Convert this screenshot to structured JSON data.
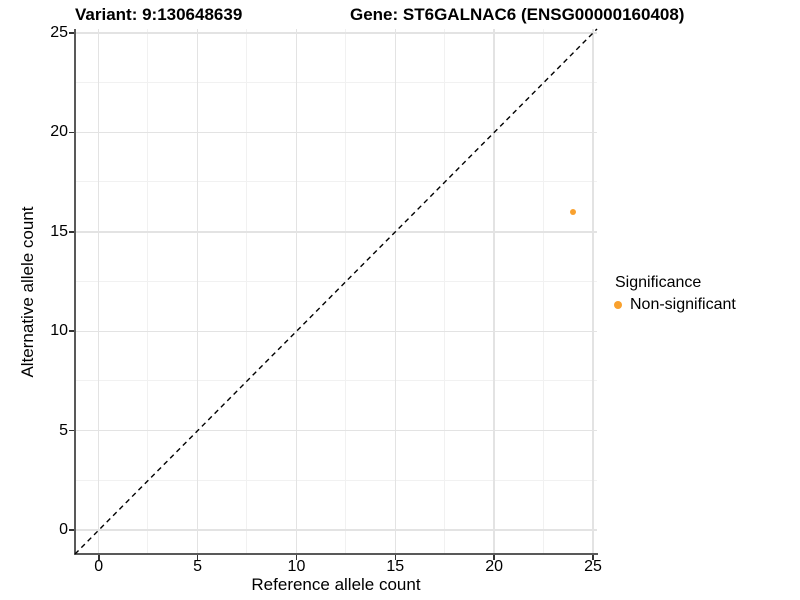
{
  "title": {
    "variant": "Variant: 9:130648639",
    "gene": "Gene: ST6GALNAC6 (ENSG00000160408)"
  },
  "chart_data": {
    "type": "scatter",
    "xlabel": "Reference allele count",
    "ylabel": "Alternative allele count",
    "xlim": [
      -1.2,
      25.2
    ],
    "ylim": [
      -1.2,
      25.2
    ],
    "x_major_ticks": [
      0,
      5,
      10,
      15,
      20,
      25
    ],
    "y_major_ticks": [
      0,
      5,
      10,
      15,
      20,
      25
    ],
    "x_minor_gridlines": [
      2.5,
      7.5,
      12.5,
      17.5,
      22.5
    ],
    "y_minor_gridlines": [
      2.5,
      7.5,
      12.5,
      17.5,
      22.5
    ],
    "grid": "major+minor",
    "points": [
      {
        "x": 24,
        "y": 16,
        "series": "Non-significant"
      }
    ],
    "identity_line": {
      "meaning": "y = x",
      "style": "dashed",
      "from": [
        -1.2,
        -1.2
      ],
      "to": [
        25.2,
        25.2
      ]
    },
    "legend": {
      "title": "Significance",
      "position": "right",
      "entries": [
        {
          "label": "Non-significant",
          "color": "#F9A12E"
        }
      ]
    }
  },
  "colors": {
    "point": "#F9A12E",
    "grid_major": "#e3e3e3",
    "grid_minor": "#f1f1f1",
    "axis_line": "#595959",
    "identity_line": "#000000",
    "text": "#000000",
    "background": "#ffffff"
  }
}
